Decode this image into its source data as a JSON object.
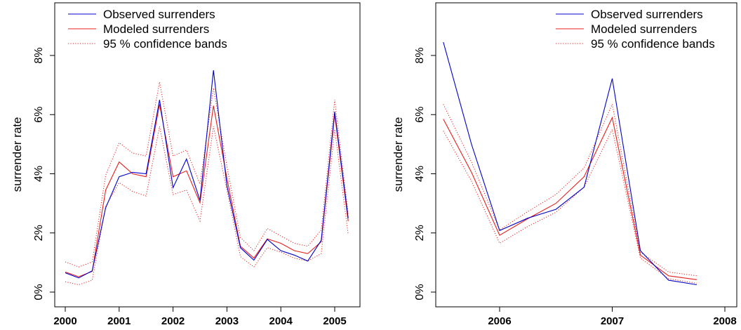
{
  "chart_data": [
    {
      "type": "line",
      "ylabel": "surrender rate",
      "xlabel": "",
      "ylim": [
        0,
        0.095
      ],
      "xlim": [
        1999.9,
        2005.45
      ],
      "x_ticks": [
        2000,
        2001,
        2002,
        2003,
        2004,
        2005
      ],
      "x_tick_labels": [
        "2000",
        "2001",
        "2002",
        "2003",
        "2004",
        "2005"
      ],
      "y_ticks": [
        0,
        0.02,
        0.04,
        0.06,
        0.08
      ],
      "y_tick_labels": [
        "0%",
        "2%",
        "4%",
        "6%",
        "8%"
      ],
      "grid": false,
      "legend_position": "top-left",
      "legend": [
        "Observed surrenders",
        "Modeled surrenders",
        "95 % confidence bands"
      ],
      "x": [
        2000.0,
        2000.25,
        2000.5,
        2000.75,
        2001.0,
        2001.25,
        2001.5,
        2001.75,
        2002.0,
        2002.25,
        2002.5,
        2002.75,
        2003.0,
        2003.25,
        2003.5,
        2003.75,
        2004.0,
        2004.25,
        2004.5,
        2004.75,
        2005.0,
        2005.25
      ],
      "series": [
        {
          "name": "Observed surrenders",
          "color": "#0000cc",
          "style": "solid",
          "values": [
            0.0065,
            0.0048,
            0.0072,
            0.0285,
            0.039,
            0.0405,
            0.04,
            0.065,
            0.0353,
            0.045,
            0.031,
            0.075,
            0.036,
            0.015,
            0.0108,
            0.0178,
            0.014,
            0.0125,
            0.0105,
            0.0175,
            0.061,
            0.025
          ]
        },
        {
          "name": "Modeled surrenders",
          "color": "#e8211e",
          "style": "solid",
          "values": [
            0.0068,
            0.0052,
            0.007,
            0.0345,
            0.044,
            0.04,
            0.039,
            0.0635,
            0.039,
            0.041,
            0.0302,
            0.063,
            0.0385,
            0.0155,
            0.0115,
            0.018,
            0.0165,
            0.014,
            0.013,
            0.017,
            0.06,
            0.024
          ]
        },
        {
          "name": "95 % confidence bands",
          "color": "#e8211e",
          "style": "dotted",
          "values": [
            0.0102,
            0.0085,
            0.0102,
            0.0395,
            0.0505,
            0.047,
            0.046,
            0.071,
            0.046,
            0.048,
            0.0365,
            0.069,
            0.0425,
            0.0185,
            0.014,
            0.0215,
            0.019,
            0.0165,
            0.0155,
            0.021,
            0.065,
            0.0265
          ]
        },
        {
          "name": "",
          "color": "#e8211e",
          "style": "dotted",
          "values": [
            0.0035,
            0.0025,
            0.004,
            0.029,
            0.037,
            0.034,
            0.0325,
            0.056,
            0.033,
            0.0345,
            0.024,
            0.056,
            0.0345,
            0.012,
            0.0085,
            0.015,
            0.0135,
            0.0115,
            0.0105,
            0.013,
            0.055,
            0.0195
          ]
        }
      ]
    },
    {
      "type": "line",
      "ylabel": "surrender rate",
      "xlabel": "",
      "ylim": [
        0,
        0.095
      ],
      "xlim": [
        2005.4,
        2008.1
      ],
      "x_ticks": [
        2006,
        2007,
        2008
      ],
      "x_tick_labels": [
        "2006",
        "2007",
        "2008"
      ],
      "y_ticks": [
        0,
        0.02,
        0.04,
        0.06,
        0.08
      ],
      "y_tick_labels": [
        "0%",
        "2%",
        "4%",
        "6%",
        "8%"
      ],
      "grid": false,
      "legend_position": "top-right",
      "legend": [
        "Observed surrenders",
        "Modeled surrenders",
        "95 % confidence bands"
      ],
      "x": [
        2005.5,
        2005.75,
        2006.0,
        2006.25,
        2006.5,
        2006.75,
        2007.0,
        2007.25,
        2007.5,
        2007.75
      ],
      "series": [
        {
          "name": "Observed surrenders",
          "color": "#0000cc",
          "style": "solid",
          "values": [
            0.0845,
            0.05,
            0.0208,
            0.025,
            0.028,
            0.0355,
            0.0722,
            0.014,
            0.004,
            0.0025
          ]
        },
        {
          "name": "Modeled surrenders",
          "color": "#e8211e",
          "style": "solid",
          "values": [
            0.0585,
            0.0405,
            0.0192,
            0.0248,
            0.03,
            0.039,
            0.059,
            0.0125,
            0.0055,
            0.0042
          ]
        },
        {
          "name": "95 % confidence bands",
          "color": "#e8211e",
          "style": "dotted",
          "values": [
            0.0635,
            0.044,
            0.021,
            0.0272,
            0.033,
            0.042,
            0.0635,
            0.0135,
            0.0068,
            0.0055
          ]
        },
        {
          "name": "",
          "color": "#e8211e",
          "style": "dotted",
          "values": [
            0.0545,
            0.0375,
            0.0165,
            0.0222,
            0.027,
            0.0355,
            0.055,
            0.0115,
            0.0045,
            0.003
          ]
        }
      ]
    }
  ]
}
